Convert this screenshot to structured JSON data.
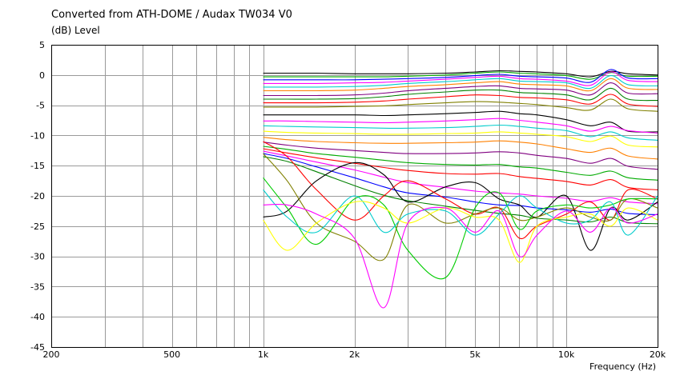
{
  "title": "Converted from ATH-DOME / Audax TW034 V0",
  "y_axis_label": "(dB)  Level",
  "x_axis_label": "Frequency  (Hz)",
  "chart_data": {
    "type": "line",
    "title": "Converted from ATH-DOME / Audax TW034 V0",
    "xlabel": "Frequency  (Hz)",
    "ylabel": "(dB)  Level",
    "xscale": "log",
    "xlim": [
      200,
      20000
    ],
    "ylim": [
      -45,
      5
    ],
    "x_ticks": [
      {
        "v": 200,
        "label": "200"
      },
      {
        "v": 500,
        "label": "500"
      },
      {
        "v": 1000,
        "label": "1k"
      },
      {
        "v": 2000,
        "label": "2k"
      },
      {
        "v": 5000,
        "label": "5k"
      },
      {
        "v": 10000,
        "label": "10k"
      },
      {
        "v": 20000,
        "label": "20k"
      }
    ],
    "y_ticks": [
      5,
      0,
      -5,
      -10,
      -15,
      -20,
      -25,
      -30,
      -35,
      -40,
      -45
    ],
    "grid": true,
    "x": [
      1000,
      1200,
      1500,
      2000,
      2500,
      3000,
      4000,
      5000,
      6000,
      7000,
      8000,
      10000,
      12000,
      14000,
      16000,
      20000
    ],
    "series": [
      {
        "color": "#000000",
        "values": [
          0.3,
          0.3,
          0.3,
          0.2,
          0.2,
          0.2,
          0.3,
          0.5,
          0.7,
          0.6,
          0.5,
          0.2,
          -0.3,
          0.6,
          0.2,
          0.0
        ]
      },
      {
        "color": "#00aa00",
        "values": [
          -0.3,
          -0.3,
          -0.3,
          -0.3,
          -0.3,
          -0.2,
          0.0,
          0.3,
          0.5,
          0.3,
          0.2,
          -0.1,
          -0.7,
          0.4,
          -0.2,
          -0.2
        ]
      },
      {
        "color": "#0000ff",
        "values": [
          -0.8,
          -0.8,
          -0.8,
          -0.8,
          -0.7,
          -0.6,
          -0.4,
          -0.1,
          0.1,
          -0.2,
          -0.3,
          -0.5,
          -1.2,
          0.9,
          -0.5,
          -0.6
        ]
      },
      {
        "color": "#ff00ff",
        "values": [
          -1.4,
          -1.4,
          -1.4,
          -1.3,
          -1.2,
          -1.0,
          -0.7,
          -0.4,
          -0.2,
          -0.6,
          -0.7,
          -1.0,
          -1.7,
          0.5,
          -0.9,
          -1.1
        ]
      },
      {
        "color": "#00cccc",
        "values": [
          -2.0,
          -2.0,
          -2.0,
          -1.9,
          -1.7,
          -1.4,
          -1.1,
          -0.8,
          -0.6,
          -1.0,
          -1.1,
          -1.3,
          -2.2,
          -0.1,
          -1.6,
          -1.8
        ]
      },
      {
        "color": "#ff8000",
        "values": [
          -2.6,
          -2.6,
          -2.6,
          -2.5,
          -2.2,
          -1.9,
          -1.6,
          -1.3,
          -1.1,
          -1.5,
          -1.6,
          -1.8,
          -2.6,
          -0.6,
          -2.2,
          -2.4
        ]
      },
      {
        "color": "#800080",
        "values": [
          -3.4,
          -3.4,
          -3.4,
          -3.3,
          -3.0,
          -2.6,
          -2.2,
          -1.9,
          -1.8,
          -2.2,
          -2.3,
          -2.5,
          -3.3,
          -1.3,
          -3.0,
          -3.1
        ]
      },
      {
        "color": "#008000",
        "values": [
          -4.0,
          -4.0,
          -4.0,
          -3.9,
          -3.6,
          -3.2,
          -2.8,
          -2.5,
          -2.5,
          -2.9,
          -3.0,
          -3.3,
          -4.1,
          -2.2,
          -4.0,
          -4.2
        ]
      },
      {
        "color": "#ff0000",
        "values": [
          -4.6,
          -4.6,
          -4.6,
          -4.5,
          -4.3,
          -4.0,
          -3.6,
          -3.3,
          -3.4,
          -3.7,
          -3.8,
          -4.1,
          -4.8,
          -3.2,
          -4.8,
          -5.2
        ]
      },
      {
        "color": "#808000",
        "values": [
          -5.3,
          -5.3,
          -5.3,
          -5.2,
          -5.1,
          -4.9,
          -4.6,
          -4.4,
          -4.5,
          -4.7,
          -4.9,
          -5.4,
          -5.8,
          -4.0,
          -5.6,
          -6.0
        ]
      },
      {
        "color": "#000000",
        "values": [
          -6.6,
          -6.6,
          -6.6,
          -6.6,
          -6.7,
          -6.6,
          -6.4,
          -6.2,
          -6.0,
          -6.4,
          -6.6,
          -7.4,
          -8.4,
          -7.8,
          -9.3,
          -9.4
        ]
      },
      {
        "color": "#ff00ff",
        "values": [
          -7.6,
          -7.6,
          -7.7,
          -7.8,
          -7.9,
          -7.8,
          -7.6,
          -7.4,
          -7.2,
          -7.5,
          -7.8,
          -8.4,
          -9.3,
          -8.5,
          -9.2,
          -9.6
        ]
      },
      {
        "color": "#00cccc",
        "values": [
          -8.4,
          -8.5,
          -8.6,
          -8.7,
          -8.8,
          -8.8,
          -8.7,
          -8.5,
          -8.3,
          -8.5,
          -8.8,
          -9.2,
          -10.2,
          -9.4,
          -10.4,
          -10.8
        ]
      },
      {
        "color": "#ffff00",
        "values": [
          -9.3,
          -9.5,
          -9.6,
          -9.7,
          -9.8,
          -9.8,
          -9.7,
          -9.6,
          -9.4,
          -9.6,
          -9.8,
          -10.2,
          -11.0,
          -10.1,
          -11.6,
          -11.9
        ]
      },
      {
        "color": "#ff8000",
        "values": [
          -10.3,
          -10.7,
          -11.0,
          -11.2,
          -11.3,
          -11.3,
          -11.2,
          -11.1,
          -10.9,
          -11.1,
          -11.4,
          -12.2,
          -12.8,
          -12.1,
          -13.4,
          -13.9
        ]
      },
      {
        "color": "#800080",
        "values": [
          -11.1,
          -11.6,
          -12.1,
          -12.5,
          -12.8,
          -13.0,
          -13.0,
          -12.9,
          -12.7,
          -12.9,
          -13.3,
          -13.8,
          -14.6,
          -13.8,
          -15.1,
          -15.6
        ]
      },
      {
        "color": "#00aa00",
        "values": [
          -11.8,
          -12.3,
          -13.0,
          -13.6,
          -14.1,
          -14.5,
          -14.8,
          -14.9,
          -14.8,
          -15.2,
          -15.4,
          -16.1,
          -16.6,
          -15.9,
          -17.0,
          -17.4
        ]
      },
      {
        "color": "#ff0000",
        "values": [
          -12.2,
          -12.9,
          -13.7,
          -14.6,
          -15.3,
          -15.8,
          -16.3,
          -16.4,
          -16.3,
          -16.8,
          -17.1,
          -17.6,
          -18.2,
          -17.3,
          -18.6,
          -19.0
        ]
      },
      {
        "color": "#ff00ff",
        "values": [
          -12.6,
          -13.4,
          -14.4,
          -15.7,
          -16.9,
          -17.8,
          -18.6,
          -19.2,
          -19.5,
          -19.7,
          -20.0,
          -20.4,
          -20.9,
          -20.3,
          -21.0,
          -21.3
        ]
      },
      {
        "color": "#0000ff",
        "values": [
          -13.0,
          -13.8,
          -15.2,
          -17.0,
          -18.5,
          -19.5,
          -20.2,
          -21.0,
          -21.5,
          -21.6,
          -22.0,
          -22.3,
          -22.7,
          -22.2,
          -22.9,
          -23.1
        ]
      },
      {
        "color": "#008000",
        "values": [
          -13.5,
          -14.3,
          -16.0,
          -18.3,
          -19.9,
          -20.8,
          -21.7,
          -22.4,
          -22.9,
          -23.2,
          -23.7,
          -24.0,
          -24.3,
          -23.5,
          -24.4,
          -24.6
        ]
      },
      {
        "color": "#000000",
        "values": [
          -23.5,
          -22.5,
          -17.5,
          -14.5,
          -16.5,
          -21.0,
          -18.5,
          -17.8,
          -20.5,
          -21.5,
          -23.5,
          -20.0,
          -29.0,
          -22.0,
          -24.0,
          -21.0
        ]
      },
      {
        "color": "#ff0000",
        "values": [
          -11.0,
          -13.5,
          -19.0,
          -24.0,
          -20.0,
          -17.5,
          -20.5,
          -23.0,
          -22.0,
          -27.0,
          -25.0,
          -23.0,
          -21.0,
          -24.0,
          -19.0,
          -20.5
        ]
      },
      {
        "color": "#808000",
        "values": [
          -13.0,
          -17.5,
          -24.5,
          -27.5,
          -30.5,
          -21.5,
          -24.5,
          -23.0,
          -22.0,
          -24.0,
          -23.5,
          -22.0,
          -23.5,
          -24.0,
          -20.5,
          -22.0
        ]
      },
      {
        "color": "#00cc00",
        "values": [
          -17.0,
          -22.0,
          -28.0,
          -20.5,
          -21.5,
          -29.0,
          -33.5,
          -22.0,
          -19.5,
          -25.5,
          -22.5,
          -21.5,
          -22.0,
          -21.5,
          -20.5,
          -20.5
        ]
      },
      {
        "color": "#00cccc",
        "values": [
          -19.0,
          -23.5,
          -26.0,
          -20.0,
          -26.0,
          -23.0,
          -22.5,
          -26.5,
          -23.0,
          -20.0,
          -22.0,
          -24.5,
          -24.0,
          -21.0,
          -26.5,
          -20.0
        ]
      },
      {
        "color": "#ffff00",
        "values": [
          -24.0,
          -29.0,
          -24.5,
          -21.0,
          -22.0,
          -24.5,
          -22.0,
          -23.5,
          -24.0,
          -31.0,
          -25.0,
          -23.5,
          -23.0,
          -25.0,
          -22.0,
          -24.0
        ]
      },
      {
        "color": "#ff00ff",
        "values": [
          -21.5,
          -21.5,
          -23.0,
          -27.0,
          -38.5,
          -24.5,
          -22.0,
          -26.0,
          -22.5,
          -30.0,
          -26.5,
          -22.5,
          -26.0,
          -22.0,
          -24.5,
          -23.0
        ]
      }
    ]
  }
}
